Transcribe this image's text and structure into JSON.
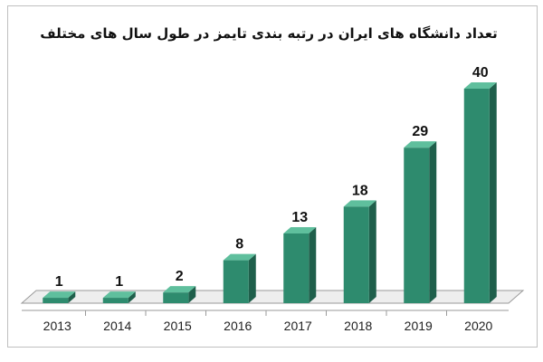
{
  "chart_data": {
    "type": "bar",
    "title": "تعداد دانشگاه های ایران در رتبه بندی تایمز در طول  سال های مختلف",
    "categories": [
      "2013",
      "2014",
      "2015",
      "2016",
      "2017",
      "2018",
      "2019",
      "2020"
    ],
    "values": [
      1,
      1,
      2,
      8,
      13,
      18,
      29,
      40
    ],
    "data_labels": [
      "1",
      "1",
      "2",
      "8",
      "13",
      "18",
      "29",
      "40"
    ],
    "xlabel": "",
    "ylabel": "",
    "ylim": [
      0,
      40
    ],
    "grid": false,
    "legend": "none",
    "style": "3d-column",
    "colors": {
      "front": "#2e8b6e",
      "side": "#1f5f4b",
      "top": "#5fbf9d",
      "floor": "#eeeeee",
      "axis": "#9a9a9a"
    }
  }
}
